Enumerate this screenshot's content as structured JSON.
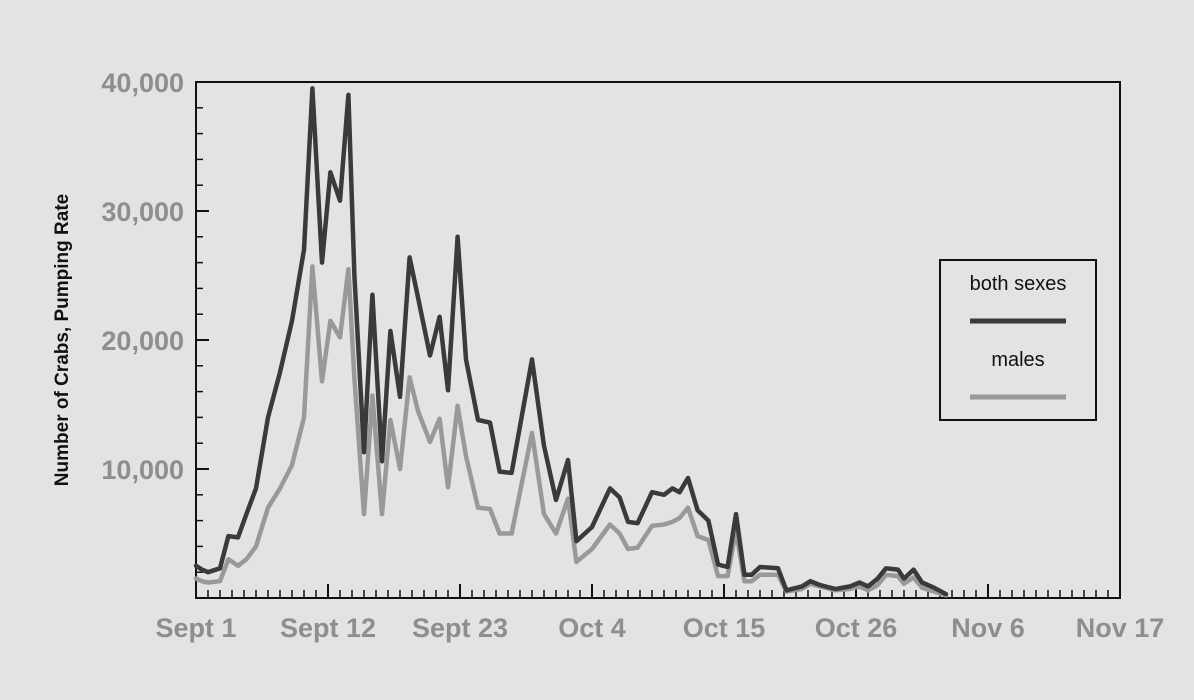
{
  "chart_data": {
    "type": "line",
    "title": "",
    "xlabel": "",
    "ylabel": "Number of Crabs, Pumping Rate",
    "x_day_range": [
      0,
      77
    ],
    "ylim": [
      0,
      40000
    ],
    "yticks": [
      {
        "value": 10000,
        "label": "10,000"
      },
      {
        "value": 20000,
        "label": "20,000"
      },
      {
        "value": 30000,
        "label": "30,000"
      },
      {
        "value": 40000,
        "label": "40,000"
      }
    ],
    "xticks": [
      {
        "day": 0,
        "label": "Sept 1"
      },
      {
        "day": 11,
        "label": "Sept 12"
      },
      {
        "day": 22,
        "label": "Sept 23"
      },
      {
        "day": 33,
        "label": "Oct 4"
      },
      {
        "day": 44,
        "label": "Oct 15"
      },
      {
        "day": 55,
        "label": "Oct 26"
      },
      {
        "day": 66,
        "label": "Nov 6"
      },
      {
        "day": 77,
        "label": "Nov 17"
      }
    ],
    "legend": {
      "position": "right",
      "title": "both sexes"
    },
    "series": [
      {
        "name": "both sexes",
        "color": "#3a3a3a",
        "points": [
          [
            0,
            2500
          ],
          [
            0.5,
            2200
          ],
          [
            1,
            2000
          ],
          [
            2,
            2300
          ],
          [
            2.7,
            4800
          ],
          [
            3.5,
            4700
          ],
          [
            4.2,
            6500
          ],
          [
            5,
            8500
          ],
          [
            6,
            14000
          ],
          [
            7,
            17500
          ],
          [
            8,
            21500
          ],
          [
            9,
            27000
          ],
          [
            9.7,
            39500
          ],
          [
            10.5,
            26000
          ],
          [
            11.2,
            33000
          ],
          [
            12,
            30800
          ],
          [
            12.7,
            39000
          ],
          [
            13.2,
            25000
          ],
          [
            14,
            11300
          ],
          [
            14.7,
            23500
          ],
          [
            15.5,
            10600
          ],
          [
            16.2,
            20700
          ],
          [
            17,
            15600
          ],
          [
            17.8,
            26400
          ],
          [
            18.5,
            23300
          ],
          [
            19.5,
            18800
          ],
          [
            20.3,
            21800
          ],
          [
            21,
            16100
          ],
          [
            21.8,
            28000
          ],
          [
            22.5,
            18500
          ],
          [
            23.5,
            13800
          ],
          [
            24.5,
            13600
          ],
          [
            25.3,
            9800
          ],
          [
            26.3,
            9700
          ],
          [
            28,
            18500
          ],
          [
            29,
            11800
          ],
          [
            30,
            7600
          ],
          [
            31,
            10700
          ],
          [
            31.7,
            4400
          ],
          [
            33,
            5500
          ],
          [
            34.5,
            8500
          ],
          [
            35.3,
            7800
          ],
          [
            36,
            5900
          ],
          [
            36.8,
            5800
          ],
          [
            38,
            8200
          ],
          [
            39,
            8000
          ],
          [
            39.7,
            8500
          ],
          [
            40.3,
            8200
          ],
          [
            41,
            9300
          ],
          [
            41.8,
            6800
          ],
          [
            42.7,
            6000
          ],
          [
            43.5,
            2600
          ],
          [
            44.3,
            2400
          ],
          [
            45,
            6500
          ],
          [
            45.7,
            1800
          ],
          [
            46.3,
            1800
          ],
          [
            47,
            2400
          ],
          [
            48.5,
            2300
          ],
          [
            49.2,
            600
          ],
          [
            50.5,
            900
          ],
          [
            51.2,
            1300
          ],
          [
            52,
            1000
          ],
          [
            53.3,
            700
          ],
          [
            54.5,
            900
          ],
          [
            55.3,
            1200
          ],
          [
            56,
            900
          ],
          [
            56.8,
            1500
          ],
          [
            57.5,
            2300
          ],
          [
            58.5,
            2200
          ],
          [
            59,
            1500
          ],
          [
            59.8,
            2200
          ],
          [
            60.5,
            1200
          ],
          [
            61.5,
            800
          ],
          [
            62.5,
            300
          ]
        ]
      },
      {
        "name": "males",
        "color": "#999999",
        "points": [
          [
            0,
            1500
          ],
          [
            0.5,
            1300
          ],
          [
            1,
            1200
          ],
          [
            2,
            1300
          ],
          [
            2.7,
            3000
          ],
          [
            3.5,
            2500
          ],
          [
            4.2,
            3000
          ],
          [
            5,
            4000
          ],
          [
            6,
            7000
          ],
          [
            7,
            8500
          ],
          [
            8,
            10300
          ],
          [
            9,
            14000
          ],
          [
            9.7,
            25700
          ],
          [
            10.5,
            16800
          ],
          [
            11.2,
            21500
          ],
          [
            12,
            20200
          ],
          [
            12.7,
            25500
          ],
          [
            13.2,
            17000
          ],
          [
            14,
            6500
          ],
          [
            14.7,
            15700
          ],
          [
            15.5,
            6500
          ],
          [
            16.2,
            13800
          ],
          [
            17,
            10000
          ],
          [
            17.8,
            17100
          ],
          [
            18.5,
            14500
          ],
          [
            19.5,
            12100
          ],
          [
            20.3,
            13900
          ],
          [
            21,
            8600
          ],
          [
            21.8,
            14900
          ],
          [
            22.5,
            11000
          ],
          [
            23.5,
            7000
          ],
          [
            24.5,
            6900
          ],
          [
            25.3,
            5000
          ],
          [
            26.3,
            5000
          ],
          [
            28,
            12800
          ],
          [
            29,
            6500
          ],
          [
            30,
            5000
          ],
          [
            31,
            7700
          ],
          [
            31.7,
            2800
          ],
          [
            33,
            3800
          ],
          [
            34.5,
            5700
          ],
          [
            35.3,
            5000
          ],
          [
            36,
            3800
          ],
          [
            36.8,
            3900
          ],
          [
            38,
            5600
          ],
          [
            39,
            5700
          ],
          [
            39.7,
            5900
          ],
          [
            40.3,
            6200
          ],
          [
            41,
            7000
          ],
          [
            41.8,
            4800
          ],
          [
            42.7,
            4500
          ],
          [
            43.5,
            1700
          ],
          [
            44.3,
            1700
          ],
          [
            45,
            5200
          ],
          [
            45.7,
            1300
          ],
          [
            46.3,
            1300
          ],
          [
            47,
            1800
          ],
          [
            48.5,
            1800
          ],
          [
            49.2,
            500
          ],
          [
            50.5,
            700
          ],
          [
            51.2,
            1100
          ],
          [
            52,
            900
          ],
          [
            53.3,
            600
          ],
          [
            54.5,
            700
          ],
          [
            55.3,
            900
          ],
          [
            56,
            600
          ],
          [
            56.8,
            1000
          ],
          [
            57.5,
            1800
          ],
          [
            58.5,
            1700
          ],
          [
            59,
            1100
          ],
          [
            59.8,
            1600
          ],
          [
            60.5,
            800
          ],
          [
            61.5,
            500
          ],
          [
            62.5,
            200
          ]
        ]
      }
    ]
  }
}
